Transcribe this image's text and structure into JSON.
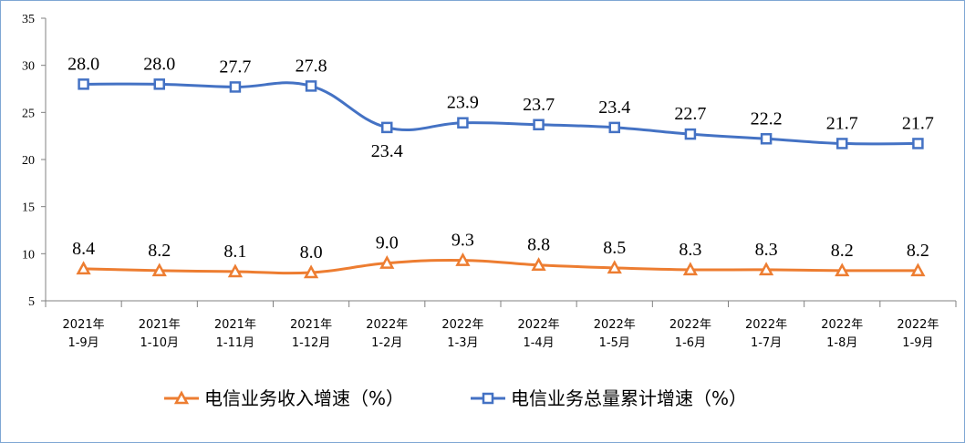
{
  "chart_data": {
    "type": "line",
    "title": "",
    "xlabel": "",
    "ylabel": "",
    "ylim": [
      5,
      35
    ],
    "yticks": [
      5,
      10,
      15,
      20,
      25,
      30,
      35
    ],
    "categories": [
      [
        "2021年",
        "1-9月"
      ],
      [
        "2021年",
        "1-10月"
      ],
      [
        "2021年",
        "1-11月"
      ],
      [
        "2021年",
        "1-12月"
      ],
      [
        "2022年",
        "1-2月"
      ],
      [
        "2022年",
        "1-3月"
      ],
      [
        "2022年",
        "1-4月"
      ],
      [
        "2022年",
        "1-5月"
      ],
      [
        "2022年",
        "1-6月"
      ],
      [
        "2022年",
        "1-7月"
      ],
      [
        "2022年",
        "1-8月"
      ],
      [
        "2022年",
        "1-9月"
      ]
    ],
    "series": [
      {
        "name": "电信业务收入增速（%）",
        "color": "#ed7d31",
        "marker": "triangle",
        "values": [
          8.4,
          8.2,
          8.1,
          8.0,
          9.0,
          9.3,
          8.8,
          8.5,
          8.3,
          8.3,
          8.2,
          8.2
        ],
        "labels": [
          "8.4",
          "8.2",
          "8.1",
          "8.0",
          "9.0",
          "9.3",
          "8.8",
          "8.5",
          "8.3",
          "8.3",
          "8.2",
          "8.2"
        ]
      },
      {
        "name": "电信业务总量累计增速（%）",
        "color": "#4472c4",
        "marker": "square",
        "values": [
          28.0,
          28.0,
          27.7,
          27.8,
          23.4,
          23.9,
          23.7,
          23.4,
          22.7,
          22.2,
          21.7,
          21.7
        ],
        "labels": [
          "28.0",
          "28.0",
          "27.7",
          "27.8",
          "23.4",
          "23.9",
          "23.7",
          "23.4",
          "22.7",
          "22.2",
          "21.7",
          "21.7"
        ]
      }
    ],
    "legend": "bottom"
  }
}
